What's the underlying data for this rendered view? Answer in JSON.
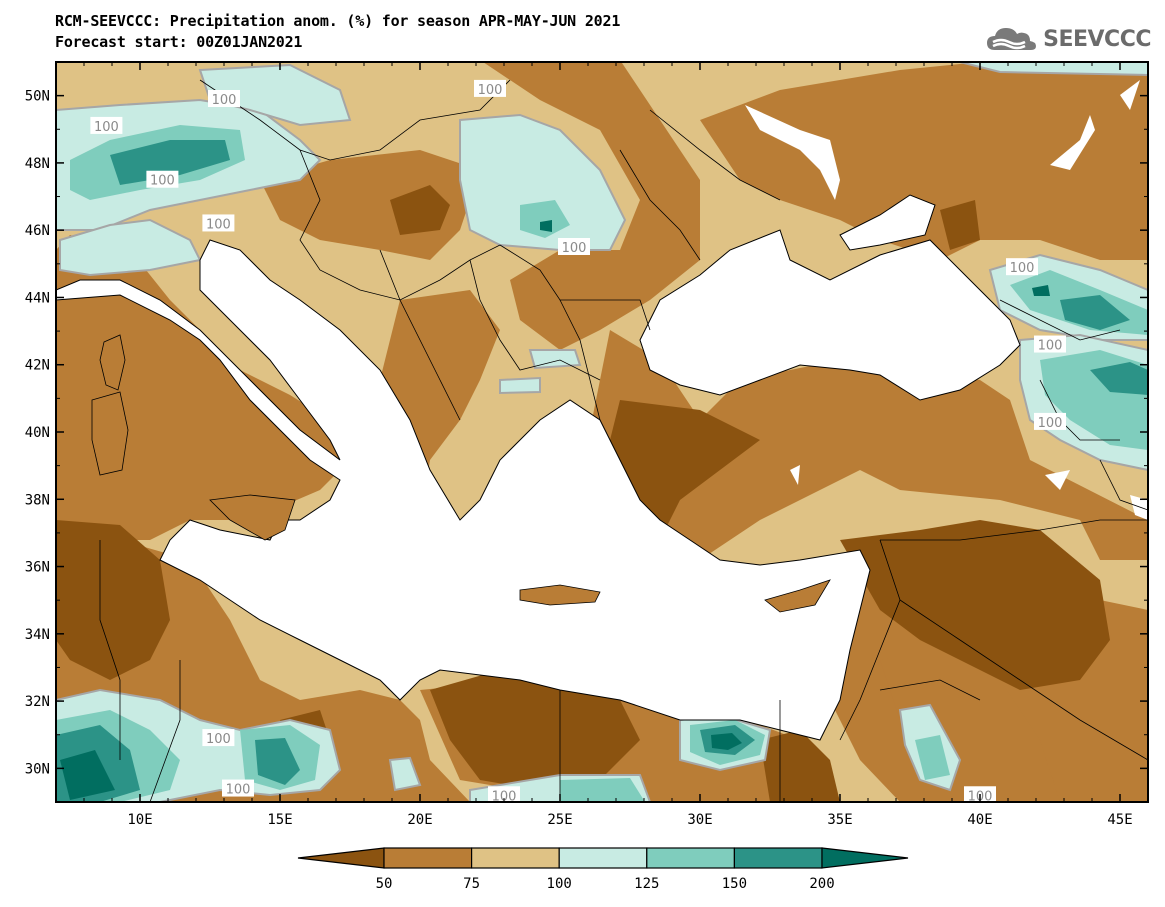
{
  "title": {
    "line1": "RCM-SEEVCCC: Precipitation anom. (%) for season APR-MAY-JUN 2021",
    "line2": "Forecast start: 00Z01JAN2021"
  },
  "logo": {
    "text": "SEEVCCC",
    "icon": "cloud-logo-icon",
    "color": "#6b6b6b"
  },
  "map": {
    "lon_range": [
      7,
      46
    ],
    "lat_range": [
      29,
      51
    ],
    "x_ticks": [
      "10E",
      "15E",
      "20E",
      "25E",
      "30E",
      "35E",
      "40E",
      "45E"
    ],
    "x_tick_values": [
      10,
      15,
      20,
      25,
      30,
      35,
      40,
      45
    ],
    "y_ticks": [
      "50N",
      "48N",
      "46N",
      "44N",
      "42N",
      "40N",
      "38N",
      "36N",
      "34N",
      "32N",
      "30N"
    ],
    "y_tick_values": [
      50,
      48,
      46,
      44,
      42,
      40,
      38,
      36,
      34,
      32,
      30
    ],
    "contour_labels": [
      {
        "text": "100",
        "lon": 13.0,
        "lat": 49.9
      },
      {
        "text": "100",
        "lon": 8.8,
        "lat": 49.1
      },
      {
        "text": "100",
        "lon": 10.8,
        "lat": 47.5
      },
      {
        "text": "100",
        "lon": 12.8,
        "lat": 46.2
      },
      {
        "text": "100",
        "lon": 22.5,
        "lat": 50.2
      },
      {
        "text": "100",
        "lon": 25.5,
        "lat": 45.5
      },
      {
        "text": "100",
        "lon": 41.5,
        "lat": 44.9
      },
      {
        "text": "100",
        "lon": 42.5,
        "lat": 42.6
      },
      {
        "text": "100",
        "lon": 42.5,
        "lat": 40.3
      },
      {
        "text": "100",
        "lon": 12.8,
        "lat": 30.9
      },
      {
        "text": "100",
        "lon": 13.5,
        "lat": 29.4
      },
      {
        "text": "100",
        "lon": 23.0,
        "lat": 29.2
      },
      {
        "text": "100",
        "lon": 40.0,
        "lat": 29.2
      }
    ]
  },
  "colorbar": {
    "levels": [
      "50",
      "75",
      "100",
      "125",
      "150",
      "200"
    ],
    "colors": [
      "#8b5310",
      "#b97d36",
      "#dfc285",
      "#c8ebe3",
      "#7fcdbd",
      "#2c9387",
      "#016e60"
    ]
  }
}
